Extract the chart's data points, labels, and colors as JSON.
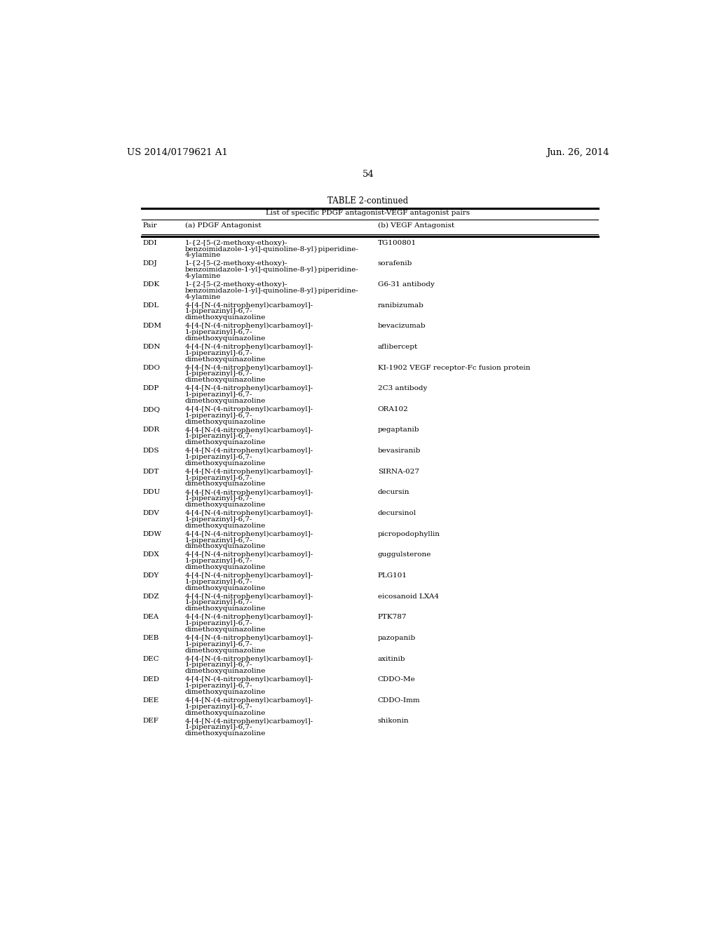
{
  "patent_number": "US 2014/0179621 A1",
  "date": "Jun. 26, 2014",
  "page_number": "54",
  "table_title": "TABLE 2-continued",
  "table_subtitle": "List of specific PDGF antagonist-VEGF antagonist pairs",
  "col_headers": [
    "Pair",
    "(a) PDGF Antagonist",
    "(b) VEGF Antagonist"
  ],
  "rows": [
    [
      "DDI",
      "1-{2-[5-(2-methoxy-ethoxy)-\nbenzoimidazole-1-yl]-quinoline-8-yl}piperidine-\n4-ylamine",
      "TG100801"
    ],
    [
      "DDJ",
      "1-{2-[5-(2-methoxy-ethoxy)-\nbenzoimidazole-1-yl]-quinoline-8-yl}piperidine-\n4-ylamine",
      "sorafenib"
    ],
    [
      "DDK",
      "1-{2-[5-(2-methoxy-ethoxy)-\nbenzoimidazole-1-yl]-quinoline-8-yl}piperidine-\n4-ylamine",
      "G6-31 antibody"
    ],
    [
      "DDL",
      "4-[4-[N-(4-nitrophenyl)carbamoyl]-\n1-piperazinyl]-6,7-\ndimethoxyquinazoline",
      "ranibizumab"
    ],
    [
      "DDM",
      "4-[4-[N-(4-nitrophenyl)carbamoyl]-\n1-piperazinyl]-6,7-\ndimethoxyquinazoline",
      "bevacizumab"
    ],
    [
      "DDN",
      "4-[4-[N-(4-nitrophenyl)carbamoyl]-\n1-piperazinyl]-6,7-\ndimethoxyquinazoline",
      "aflibercept"
    ],
    [
      "DDO",
      "4-[4-[N-(4-nitrophenyl)carbamoyl]-\n1-piperazinyl]-6,7-\ndimethoxyquinazoline",
      "KI-1902 VEGF receptor-Fc fusion protein"
    ],
    [
      "DDP",
      "4-[4-[N-(4-nitrophenyl)carbamoyl]-\n1-piperazinyl]-6,7-\ndimethoxyquinazoline",
      "2C3 antibody"
    ],
    [
      "DDQ",
      "4-[4-[N-(4-nitrophenyl)carbamoyl]-\n1-piperazinyl]-6,7-\ndimethoxyquinazoline",
      "ORA102"
    ],
    [
      "DDR",
      "4-[4-[N-(4-nitrophenyl)carbamoyl]-\n1-piperazinyl]-6,7-\ndimethoxyquinazoline",
      "pegaptanib"
    ],
    [
      "DDS",
      "4-[4-[N-(4-nitrophenyl)carbamoyl]-\n1-piperazinyl]-6,7-\ndimethoxyquinazoline",
      "bevasiranib"
    ],
    [
      "DDT",
      "4-[4-[N-(4-nitrophenyl)carbamoyl]-\n1-piperazinyl]-6,7-\ndimethoxyquinazoline",
      "SIRNA-027"
    ],
    [
      "DDU",
      "4-[4-[N-(4-nitrophenyl)carbamoyl]-\n1-piperazinyl]-6,7-\ndimethoxyquinazoline",
      "decursin"
    ],
    [
      "DDV",
      "4-[4-[N-(4-nitrophenyl)carbamoyl]-\n1-piperazinyl]-6,7-\ndimethoxyquinazoline",
      "decursinol"
    ],
    [
      "DDW",
      "4-[4-[N-(4-nitrophenyl)carbamoyl]-\n1-piperazinyl]-6,7-\ndimethoxyquinazoline",
      "picropodophyllin"
    ],
    [
      "DDX",
      "4-[4-[N-(4-nitrophenyl)carbamoyl]-\n1-piperazinyl]-6,7-\ndimethoxyquinazoline",
      "guggulsterone"
    ],
    [
      "DDY",
      "4-[4-[N-(4-nitrophenyl)carbamoyl]-\n1-piperazinyl]-6,7-\ndimethoxyquinazoline",
      "PLG101"
    ],
    [
      "DDZ",
      "4-[4-[N-(4-nitrophenyl)carbamoyl]-\n1-piperazinyl]-6,7-\ndimethoxyquinazoline",
      "eicosanoid LXA4"
    ],
    [
      "DEA",
      "4-[4-[N-(4-nitrophenyl)carbamoyl]-\n1-piperazinyl]-6,7-\ndimethoxyquinazoline",
      "PTK787"
    ],
    [
      "DEB",
      "4-[4-[N-(4-nitrophenyl)carbamoyl]-\n1-piperazinyl]-6,7-\ndimethoxyquinazoline",
      "pazopanib"
    ],
    [
      "DEC",
      "4-[4-[N-(4-nitrophenyl)carbamoyl]-\n1-piperazinyl]-6,7-\ndimethoxyquinazoline",
      "axitinib"
    ],
    [
      "DED",
      "4-[4-[N-(4-nitrophenyl)carbamoyl]-\n1-piperazinyl]-6,7-\ndimethoxyquinazoline",
      "CDDO-Me"
    ],
    [
      "DEE",
      "4-[4-[N-(4-nitrophenyl)carbamoyl]-\n1-piperazinyl]-6,7-\ndimethoxyquinazoline",
      "CDDO-Imm"
    ],
    [
      "DEF",
      "4-[4-[N-(4-nitrophenyl)carbamoyl]-\n1-piperazinyl]-6,7-\ndimethoxyquinazoline",
      "shikonin"
    ]
  ],
  "bg_color": "#ffffff",
  "text_color": "#000000",
  "font_size": 7.5,
  "header_font_size": 7.5,
  "title_font_size": 8.5,
  "patent_font_size": 9.5
}
